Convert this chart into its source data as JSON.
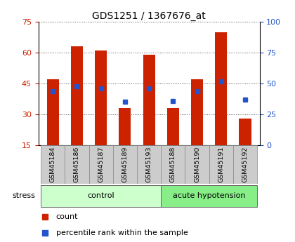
{
  "title": "GDS1251 / 1367676_at",
  "samples": [
    "GSM45184",
    "GSM45186",
    "GSM45187",
    "GSM45189",
    "GSM45193",
    "GSM45188",
    "GSM45190",
    "GSM45191",
    "GSM45192"
  ],
  "count_values": [
    47,
    63,
    61,
    33,
    59,
    33,
    47,
    70,
    28
  ],
  "percentile_values": [
    44,
    48,
    46,
    35,
    46,
    36,
    44,
    52,
    37
  ],
  "ylim_left": [
    15,
    75
  ],
  "ylim_right": [
    0,
    100
  ],
  "y_ticks_left": [
    15,
    30,
    45,
    60,
    75
  ],
  "y_ticks_right": [
    0,
    25,
    50,
    75,
    100
  ],
  "groups": [
    {
      "label": "control",
      "indices": [
        0,
        1,
        2,
        3,
        4
      ],
      "color": "#ccffcc"
    },
    {
      "label": "acute hypotension",
      "indices": [
        5,
        6,
        7,
        8
      ],
      "color": "#88ee88"
    }
  ],
  "bar_color": "#cc2200",
  "percentile_color": "#2255cc",
  "background_color": "#ffffff",
  "label_box_color": "#cccccc",
  "left_axis_color": "#cc2200",
  "right_axis_color": "#2255cc",
  "grid_linestyle": "dotted",
  "bar_width": 0.5,
  "figsize": [
    4.2,
    3.45
  ],
  "dpi": 100
}
